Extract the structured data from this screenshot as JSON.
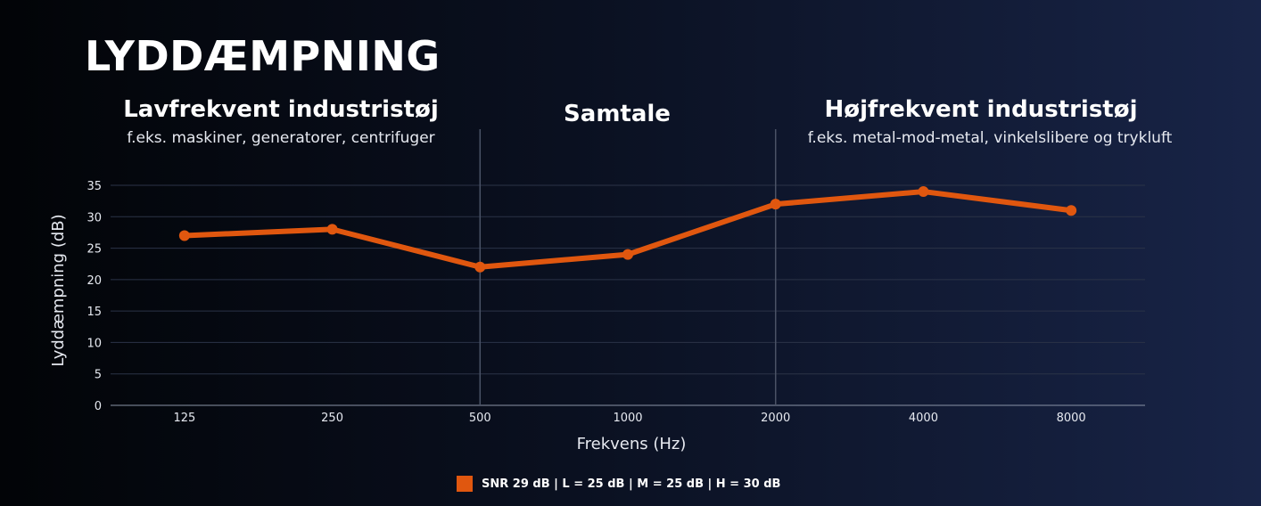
{
  "page": {
    "title": "LYDDÆMPNING"
  },
  "regions": [
    {
      "title": "Lavfrekvent industristøj",
      "subtitle": "f.eks. maskiner, generatorer, centrifuger"
    },
    {
      "title": "Samtale",
      "subtitle": ""
    },
    {
      "title": "Højfrekvent industristøj",
      "subtitle": "f.eks. metal-mod-metal, vinkelslibere og trykluft"
    }
  ],
  "chart_data": {
    "type": "line",
    "categories": [
      "125",
      "250",
      "500",
      "1000",
      "2000",
      "4000",
      "8000"
    ],
    "series": [
      {
        "name": "SNR 29 dB |  L = 25 dB |  M = 25 dB |  H = 30 dB",
        "values": [
          27,
          28,
          22,
          24,
          32,
          34,
          31
        ],
        "color": "#e0570f"
      }
    ],
    "xlabel": "Frekvens (Hz)",
    "ylabel": "Lyddæmpning (dB)",
    "ylim": [
      0,
      35
    ],
    "yticks": [
      0,
      5,
      10,
      15,
      20,
      25,
      30,
      35
    ],
    "grid": true,
    "region_dividers": [
      "500",
      "2000"
    ],
    "legend": "bottom"
  }
}
